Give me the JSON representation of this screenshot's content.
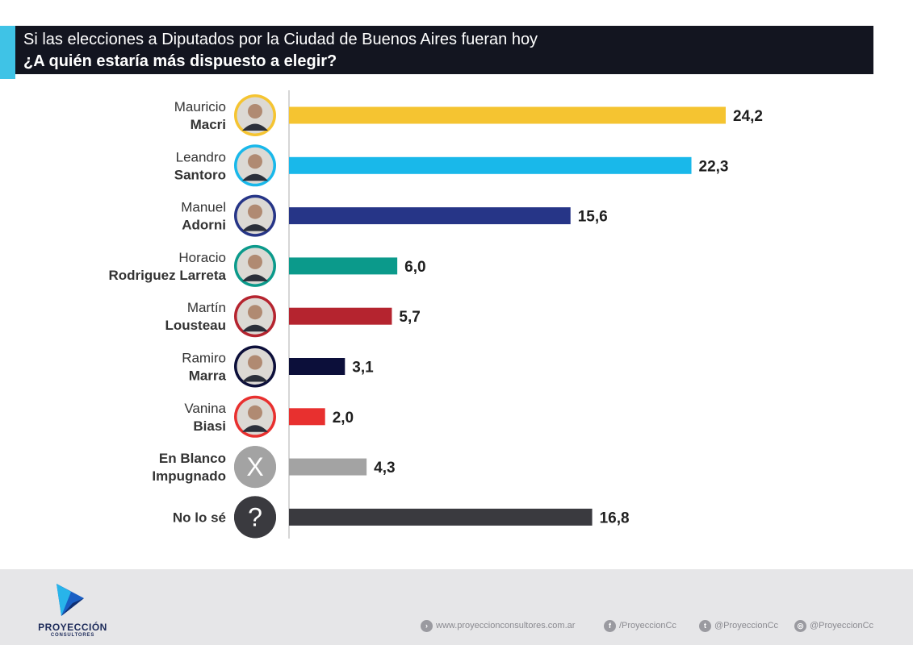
{
  "header": {
    "title": "Si las elecciones a Diputados por la Ciudad de Buenos Aires fueran hoy",
    "subtitle": "¿A quién estaría más dispuesto a elegir?"
  },
  "chart_data": {
    "type": "bar",
    "orientation": "horizontal",
    "title": "Si las elecciones a Diputados por la Ciudad de Buenos Aires fueran hoy",
    "subtitle": "¿A quién estaría más dispuesto a elegir?",
    "categories": [
      {
        "first": "Mauricio",
        "last": "Macri"
      },
      {
        "first": "Leandro",
        "last": "Santoro"
      },
      {
        "first": "Manuel",
        "last": "Adorni"
      },
      {
        "first": "Horacio",
        "last": "Rodriguez Larreta"
      },
      {
        "first": "Martín",
        "last": "Lousteau"
      },
      {
        "first": "Ramiro",
        "last": "Marra"
      },
      {
        "first": "Vanina",
        "last": "Biasi"
      },
      {
        "first": "En Blanco",
        "last": "Impugnado"
      },
      {
        "first": "",
        "last": "No lo sé"
      }
    ],
    "values": [
      24.2,
      22.3,
      15.6,
      6.0,
      5.7,
      3.1,
      2.0,
      4.3,
      16.8
    ],
    "value_labels": [
      "24,2",
      "22,3",
      "15,6",
      "6,0",
      "5,7",
      "3,1",
      "2,0",
      "4,3",
      "16,8"
    ],
    "colors": [
      "#f5c431",
      "#19b8ea",
      "#263587",
      "#0b9a8b",
      "#b5242f",
      "#0c0f3a",
      "#e8302f",
      "#a3a3a3",
      "#3a3a3f"
    ],
    "avatars": [
      "photo",
      "photo",
      "photo",
      "photo",
      "photo",
      "photo",
      "photo",
      "x-icon",
      "question-icon"
    ],
    "avatar_glyphs": [
      "",
      "",
      "",
      "",
      "",
      "",
      "",
      "X",
      "?"
    ],
    "xlim": [
      0,
      24.2
    ],
    "grid": false,
    "legend": "none"
  },
  "footer": {
    "brand": "PROYECCIÓN",
    "brand_sub": "CONSULTORES",
    "links": [
      {
        "icon": "web-icon",
        "glyph": "›",
        "text": "www.proyeccionconsultores.com.ar"
      },
      {
        "icon": "facebook-icon",
        "glyph": "f",
        "text": "/ProyeccionCc"
      },
      {
        "icon": "twitter-icon",
        "glyph": "t",
        "text": "@ProyeccionCc"
      },
      {
        "icon": "instagram-icon",
        "glyph": "◎",
        "text": "@ProyeccionCc"
      }
    ]
  }
}
